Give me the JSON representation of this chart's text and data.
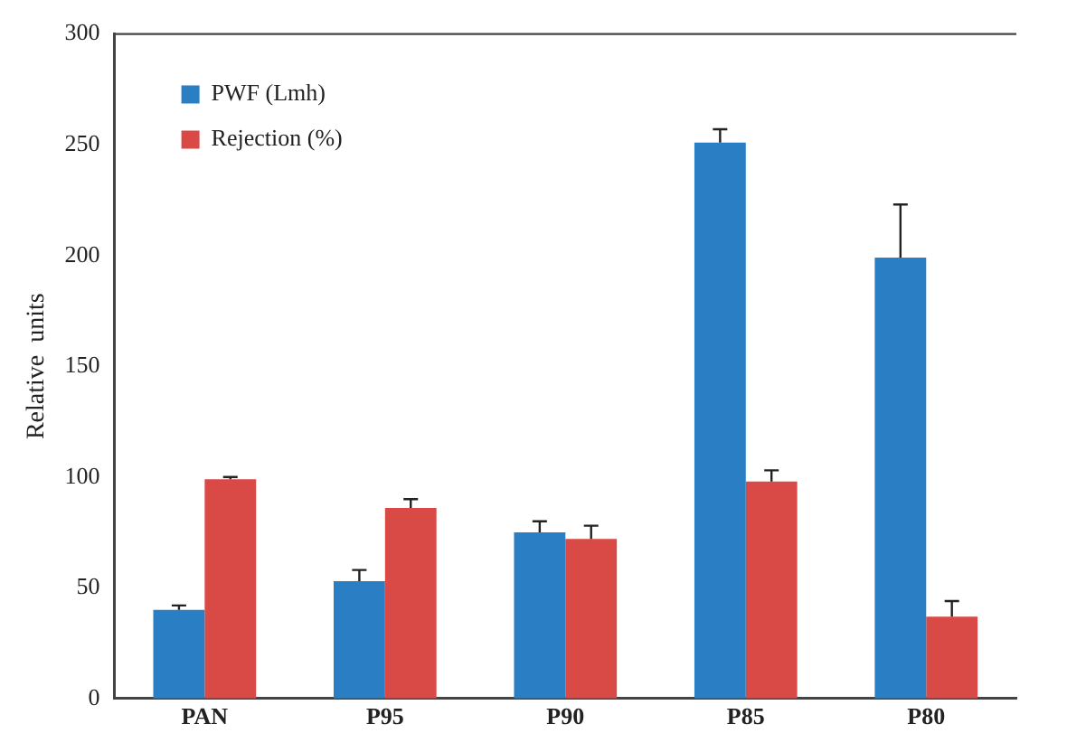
{
  "chart_data": {
    "type": "bar",
    "ylabel": "Relative  units",
    "categories": [
      "PAN",
      "P95",
      "P90",
      "P85",
      "P80"
    ],
    "series": [
      {
        "name": "PWF (Lmh)",
        "color": "#2a7fc4",
        "values": [
          40,
          53,
          75,
          251,
          199
        ],
        "errors": [
          [
            40,
            42
          ],
          [
            53,
            58
          ],
          [
            75,
            80
          ],
          [
            251,
            257
          ],
          [
            199,
            223
          ]
        ]
      },
      {
        "name": "Rejection (%)",
        "color": "#d94a47",
        "values": [
          99,
          86,
          72,
          98,
          37
        ],
        "errors": [
          [
            99,
            100
          ],
          [
            86,
            90
          ],
          [
            72,
            78
          ],
          [
            98,
            103
          ],
          [
            37,
            44
          ]
        ]
      }
    ],
    "ylim": [
      0,
      300
    ],
    "yticks": [
      0,
      50,
      100,
      150,
      200,
      250,
      300
    ],
    "grid": false,
    "legend": "top left"
  }
}
